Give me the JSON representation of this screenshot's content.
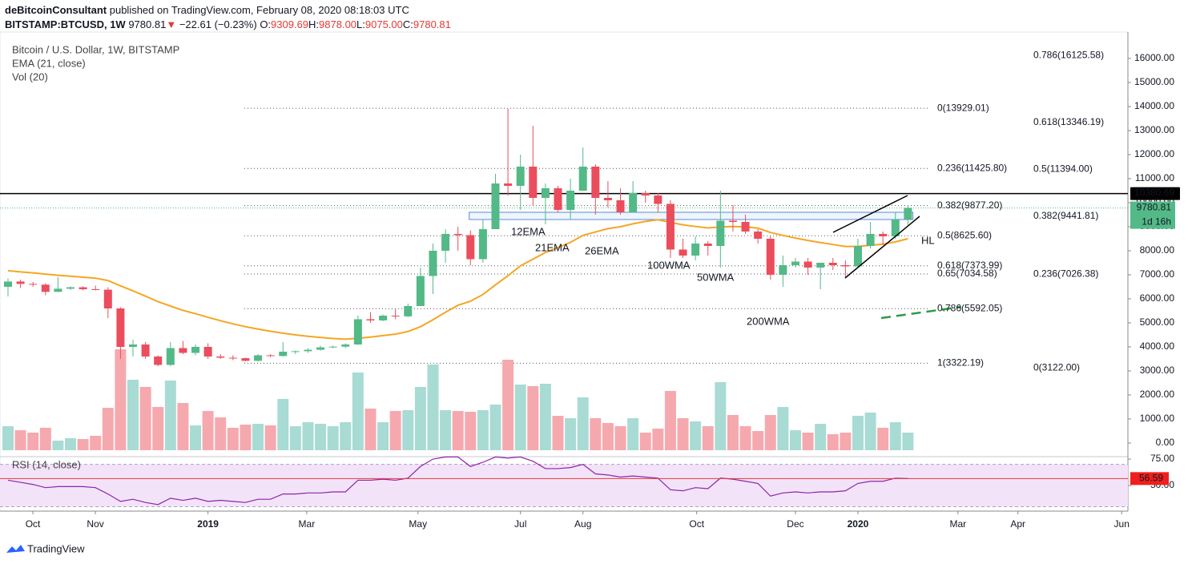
{
  "header": {
    "author": "deBitcoinConsultant",
    "published": "published on TradingView.com, February 08, 2020 08:18:03 UTC",
    "symbol": "BITSTAMP:BTCUSD, 1W",
    "last": "9780.81",
    "arrow": "▼",
    "change": "−22.61 (−0.23%)",
    "ohlc": [
      {
        "key": "O:",
        "value": "9309.69"
      },
      {
        "key": "H:",
        "value": "9878.00"
      },
      {
        "key": "L:",
        "value": "9075.00"
      },
      {
        "key": "C:",
        "value": "9780.81"
      }
    ]
  },
  "chart_data": {
    "type": "candlestick",
    "title": "Bitcoin / U.S. Dollar, 1W, BITSTAMP",
    "indicators": [
      "EMA (21, close)",
      "Vol (20)"
    ],
    "up_color": "#53b987",
    "down_color": "#eb4d5c",
    "vol_up_color": "#a8dbd4",
    "vol_down_color": "#f5a9ae",
    "xlim": [
      -0.64,
      89.6
    ],
    "xticks": [
      {
        "value": 1.99,
        "label": "Oct"
      },
      {
        "value": 6.99,
        "label": "Nov"
      },
      {
        "value": 16.0,
        "label": "2019",
        "bold": true
      },
      {
        "value": 23.9,
        "label": "Mar"
      },
      {
        "value": 32.8,
        "label": "May"
      },
      {
        "value": 41.0,
        "label": "Jul"
      },
      {
        "value": 46.0,
        "label": "Aug"
      },
      {
        "value": 55.1,
        "label": "Oct"
      },
      {
        "value": 63.0,
        "label": "Dec"
      },
      {
        "value": 68.0,
        "label": "2020",
        "bold": true
      },
      {
        "value": 76.0,
        "label": "Mar"
      },
      {
        "value": 80.8,
        "label": "Apr"
      },
      {
        "value": 89.1,
        "label": "Jun"
      }
    ],
    "ylim": [
      -567,
      17100
    ],
    "yticks": [
      {
        "value": 0,
        "label": "0.00"
      },
      {
        "value": 1000,
        "label": "1000.00"
      },
      {
        "value": 2000,
        "label": "2000.00"
      },
      {
        "value": 3000,
        "label": "3000.00"
      },
      {
        "value": 4000,
        "label": "4000.00"
      },
      {
        "value": 5000,
        "label": "5000.00"
      },
      {
        "value": 6000,
        "label": "6000.00"
      },
      {
        "value": 7000,
        "label": "7000.00"
      },
      {
        "value": 8000,
        "label": "8000.00"
      },
      {
        "value": 9000,
        "label": "9000.00"
      },
      {
        "value": 10000,
        "label": "10000.00"
      },
      {
        "value": 11000,
        "label": "11000.00"
      },
      {
        "value": 12000,
        "label": "12000.00"
      },
      {
        "value": 13000,
        "label": "13000.00"
      },
      {
        "value": 14000,
        "label": "14000.00"
      },
      {
        "value": 15000,
        "label": "15000.00"
      },
      {
        "value": 16000,
        "label": "16000.00"
      }
    ],
    "ohlc": [
      [
        6500,
        6850,
        6100,
        6720
      ],
      [
        6720,
        6800,
        6450,
        6620
      ],
      [
        6620,
        6700,
        6500,
        6590
      ],
      [
        6590,
        6650,
        6150,
        6290
      ],
      [
        6290,
        6900,
        6280,
        6420
      ],
      [
        6420,
        6520,
        6370,
        6480
      ],
      [
        6480,
        6520,
        6350,
        6400
      ],
      [
        6400,
        6550,
        6350,
        6380
      ],
      [
        6380,
        6480,
        5200,
        5600
      ],
      [
        5600,
        5650,
        3500,
        4000
      ],
      [
        4000,
        4300,
        3600,
        4100
      ],
      [
        4100,
        4200,
        3500,
        3600
      ],
      [
        3600,
        3650,
        3200,
        3250
      ],
      [
        3250,
        4200,
        3200,
        3950
      ],
      [
        3950,
        4250,
        3700,
        3750
      ],
      [
        3750,
        4100,
        3650,
        4000
      ],
      [
        4000,
        4150,
        3500,
        3600
      ],
      [
        3600,
        3700,
        3500,
        3550
      ],
      [
        3550,
        3650,
        3450,
        3530
      ],
      [
        3530,
        3550,
        3400,
        3420
      ],
      [
        3420,
        3700,
        3390,
        3650
      ],
      [
        3650,
        3700,
        3580,
        3620
      ],
      [
        3620,
        4200,
        3600,
        3800
      ],
      [
        3800,
        3850,
        3700,
        3820
      ],
      [
        3820,
        3950,
        3750,
        3880
      ],
      [
        3880,
        4050,
        3850,
        3980
      ],
      [
        3980,
        4050,
        3950,
        4010
      ],
      [
        4010,
        4150,
        3950,
        4100
      ],
      [
        4100,
        5300,
        4080,
        5150
      ],
      [
        5150,
        5450,
        5000,
        5100
      ],
      [
        5100,
        5350,
        5070,
        5300
      ],
      [
        5300,
        5600,
        5150,
        5270
      ],
      [
        5270,
        5800,
        5240,
        5700
      ],
      [
        5700,
        7300,
        5700,
        6950
      ],
      [
        6950,
        8300,
        6200,
        8000
      ],
      [
        8000,
        8900,
        7500,
        8700
      ],
      [
        8700,
        9000,
        8000,
        8650
      ],
      [
        8650,
        8850,
        7400,
        7650
      ],
      [
        7650,
        9300,
        7500,
        8900
      ],
      [
        8900,
        11200,
        8900,
        10800
      ],
      [
        10800,
        13900,
        10300,
        10700
      ],
      [
        10700,
        12000,
        9700,
        11500
      ],
      [
        11500,
        13200,
        9900,
        10200
      ],
      [
        10200,
        10800,
        9100,
        10600
      ],
      [
        10600,
        10700,
        9600,
        9700
      ],
      [
        9700,
        11000,
        9300,
        10500
      ],
      [
        10500,
        12300,
        10500,
        11500
      ],
      [
        11500,
        11600,
        9500,
        10200
      ],
      [
        10200,
        10900,
        9800,
        10100
      ],
      [
        10100,
        10600,
        9500,
        9600
      ],
      [
        9600,
        10900,
        9600,
        10400
      ],
      [
        10400,
        10500,
        10000,
        10300
      ],
      [
        10300,
        10400,
        9600,
        9950
      ],
      [
        9950,
        10100,
        7700,
        8050
      ],
      [
        8050,
        8500,
        7700,
        7800
      ],
      [
        7800,
        8600,
        7600,
        8300
      ],
      [
        8300,
        8400,
        7800,
        8200
      ],
      [
        8200,
        10500,
        7300,
        9250
      ],
      [
        9250,
        9900,
        8800,
        9200
      ],
      [
        9200,
        9500,
        8700,
        8800
      ],
      [
        8800,
        8900,
        8300,
        8500
      ],
      [
        8500,
        8600,
        6800,
        7000
      ],
      [
        7000,
        7800,
        6500,
        7400
      ],
      [
        7400,
        7700,
        7300,
        7550
      ],
      [
        7550,
        7700,
        7000,
        7300
      ],
      [
        7300,
        7500,
        6400,
        7500
      ],
      [
        7500,
        7700,
        7200,
        7400
      ],
      [
        7400,
        7600,
        6850,
        7350
      ],
      [
        7350,
        8500,
        7300,
        8200
      ],
      [
        8200,
        9200,
        8100,
        8700
      ],
      [
        8700,
        8800,
        8250,
        8600
      ],
      [
        8600,
        9600,
        8500,
        9300
      ],
      [
        9309.69,
        9878,
        9075,
        9780.81
      ]
    ],
    "volume": {
      "ylim": [
        0,
        120
      ],
      "values": [
        30,
        25,
        22,
        28,
        12,
        15,
        14,
        18,
        53,
        126,
        88,
        79,
        54,
        87,
        59,
        31,
        49,
        41,
        28,
        32,
        33,
        31,
        64,
        30,
        35,
        33,
        30,
        35,
        97,
        52,
        35,
        49,
        50,
        79,
        107,
        50,
        49,
        48,
        50,
        57,
        113,
        82,
        80,
        83,
        43,
        40,
        66,
        40,
        34,
        30,
        40,
        22,
        27,
        74,
        40,
        36,
        30,
        85,
        44,
        30,
        24,
        44,
        54,
        25,
        22,
        33,
        20,
        22,
        43,
        47,
        28,
        35,
        22
      ]
    },
    "ema": {
      "color": "#f5a623",
      "values": [
        7170,
        7120,
        7080,
        7030,
        6980,
        6940,
        6900,
        6860,
        6760,
        6540,
        6330,
        6110,
        5880,
        5700,
        5520,
        5380,
        5230,
        5090,
        4960,
        4840,
        4740,
        4650,
        4570,
        4500,
        4440,
        4390,
        4350,
        4320,
        4360,
        4410,
        4470,
        4530,
        4640,
        4840,
        5130,
        5440,
        5730,
        5900,
        6180,
        6580,
        6960,
        7370,
        7650,
        7930,
        8130,
        8350,
        8640,
        8780,
        8920,
        9000,
        9120,
        9220,
        9290,
        9180,
        9080,
        9010,
        8950,
        8990,
        9010,
        8990,
        8940,
        8760,
        8640,
        8530,
        8430,
        8340,
        8260,
        8180,
        8180,
        8230,
        8270,
        8370,
        8500
      ]
    },
    "fib_left": [
      {
        "value": 13929.01,
        "label": "0(13929.01)"
      },
      {
        "value": 11425.8,
        "label": "0.236(11425.80)"
      },
      {
        "value": 9877.2,
        "label": "0.382(9877.20)"
      },
      {
        "value": 8625.6,
        "label": "0.5(8625.60)"
      },
      {
        "value": 7373.99,
        "label": "0.618(7373.99)"
      },
      {
        "value": 7034.58,
        "label": "0.65(7034.58)"
      },
      {
        "value": 5592.05,
        "label": "0.786(5592.05)"
      },
      {
        "value": 3322.19,
        "label": "1(3322.19)"
      }
    ],
    "fib_right": {
      "color": "#e53935",
      "levels": [
        {
          "value": 16125.58,
          "label": "0.786(16125.58)"
        },
        {
          "value": 13346.19,
          "label": "0.618(13346.19)"
        },
        {
          "value": 11394.0,
          "label": "0.5(11394.00)"
        },
        {
          "value": 9441.81,
          "label": "0.382(9441.81)"
        },
        {
          "value": 7026.38,
          "label": "0.236(7026.38)"
        },
        {
          "value": 3122.0,
          "label": "0(3122.00)"
        }
      ]
    },
    "hline": 10380.69,
    "last_price": 9780.81,
    "countdown": "1d 16h",
    "zone": [
      9300,
      9600
    ],
    "annotations": [
      {
        "text": "12EMA",
        "color": "#2962ff"
      },
      {
        "text": "21EMA",
        "color": "#f5a623"
      },
      {
        "text": "26EMA",
        "color": "#e53935"
      },
      {
        "text": "100WMA",
        "color": "#9c27b0"
      },
      {
        "text": "50WMA",
        "color": "#9c27b0"
      },
      {
        "text": "200WMA",
        "color": "#2e9b45"
      },
      {
        "text": "HL",
        "color": "#131722"
      }
    ],
    "rsi": {
      "name": "RSI (14, close)",
      "color": "#8e24aa",
      "ylim": [
        25.8,
        77.3
      ],
      "yticks": [
        {
          "value": 75,
          "label": "75.00"
        },
        {
          "value": 50,
          "label": "50.00"
        }
      ],
      "bands": [
        70,
        30
      ],
      "values": [
        55,
        53,
        51,
        48,
        49,
        49,
        49,
        48,
        42,
        35,
        37,
        34,
        32,
        38,
        36,
        38,
        35,
        36,
        35,
        34,
        37,
        37,
        42,
        42,
        43,
        43,
        44,
        44,
        55,
        55,
        56,
        55,
        57,
        68,
        75,
        77,
        77,
        68,
        72,
        77,
        76,
        77,
        73,
        66,
        66,
        67,
        70,
        61,
        60,
        58,
        59,
        58,
        57,
        46,
        45,
        48,
        47,
        57,
        56,
        54,
        52,
        40,
        43,
        44,
        43,
        44,
        44,
        45,
        52,
        54,
        54,
        57,
        56.59
      ]
    }
  },
  "footer": {
    "brand": "TradingView"
  }
}
